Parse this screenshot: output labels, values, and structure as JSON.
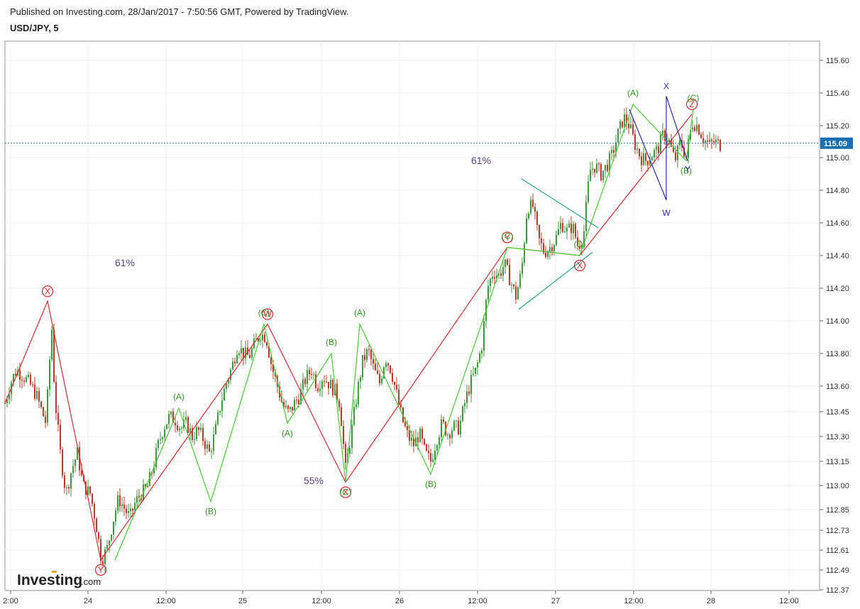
{
  "header": {
    "published": "Published on Investing.com, 28/Jan/2017 - 7:50:56 GMT, Powered by TradingView.",
    "symbol": "USD/JPY, 5"
  },
  "logo": {
    "main": "Investing",
    "sub": ".com"
  },
  "chart_data": {
    "type": "candlestick",
    "price_axis": {
      "ticks": [
        "115.60",
        "115.40",
        "115.20",
        "115.00",
        "114.80",
        "114.60",
        "114.40",
        "114.20",
        "114.00",
        "113.80",
        "113.60",
        "113.45",
        "113.30",
        "113.15",
        "113.00",
        "112.85",
        "112.73",
        "112.61",
        "112.49",
        "112.37"
      ],
      "range": [
        112.37,
        115.6
      ]
    },
    "time_axis": {
      "ticks": [
        "2:00",
        "24",
        "12:00",
        "25",
        "12:00",
        "26",
        "12:00",
        "27",
        "12:00",
        "28",
        "12:00"
      ]
    },
    "last_price": {
      "value": 115.09,
      "label": "115.09",
      "color": "#1a6fb0"
    },
    "candle_colors": {
      "up": "#3f9a3f",
      "down": "#c0392b"
    },
    "candles_close_path": [
      [
        0,
        113.5
      ],
      [
        8,
        113.62
      ],
      [
        16,
        113.7
      ],
      [
        26,
        113.66
      ],
      [
        34,
        113.62
      ],
      [
        44,
        113.55
      ],
      [
        52,
        113.45
      ],
      [
        58,
        113.38
      ],
      [
        62,
        113.7
      ],
      [
        66,
        113.95
      ],
      [
        70,
        113.55
      ],
      [
        78,
        113.2
      ],
      [
        86,
        112.95
      ],
      [
        94,
        113.1
      ],
      [
        102,
        113.2
      ],
      [
        110,
        113.0
      ],
      [
        120,
        112.95
      ],
      [
        128,
        112.78
      ],
      [
        136,
        112.55
      ],
      [
        144,
        112.62
      ],
      [
        152,
        112.78
      ],
      [
        160,
        112.92
      ],
      [
        168,
        112.86
      ],
      [
        176,
        112.8
      ],
      [
        184,
        112.9
      ],
      [
        192,
        112.95
      ],
      [
        200,
        112.98
      ],
      [
        208,
        113.1
      ],
      [
        216,
        113.25
      ],
      [
        224,
        113.36
      ],
      [
        232,
        113.42
      ],
      [
        240,
        113.4
      ],
      [
        248,
        113.35
      ],
      [
        256,
        113.38
      ],
      [
        264,
        113.3
      ],
      [
        272,
        113.34
      ],
      [
        280,
        113.28
      ],
      [
        288,
        113.2
      ],
      [
        296,
        113.32
      ],
      [
        304,
        113.5
      ],
      [
        312,
        113.62
      ],
      [
        320,
        113.72
      ],
      [
        328,
        113.85
      ],
      [
        336,
        113.8
      ],
      [
        344,
        113.78
      ],
      [
        352,
        113.86
      ],
      [
        360,
        113.92
      ],
      [
        368,
        113.9
      ],
      [
        376,
        113.72
      ],
      [
        384,
        113.6
      ],
      [
        392,
        113.48
      ],
      [
        400,
        113.44
      ],
      [
        408,
        113.5
      ],
      [
        416,
        113.55
      ],
      [
        424,
        113.65
      ],
      [
        432,
        113.7
      ],
      [
        440,
        113.6
      ],
      [
        448,
        113.66
      ],
      [
        456,
        113.62
      ],
      [
        464,
        113.58
      ],
      [
        472,
        113.5
      ],
      [
        480,
        113.1
      ],
      [
        488,
        113.32
      ],
      [
        496,
        113.55
      ],
      [
        504,
        113.75
      ],
      [
        512,
        113.82
      ],
      [
        520,
        113.7
      ],
      [
        528,
        113.62
      ],
      [
        536,
        113.78
      ],
      [
        544,
        113.7
      ],
      [
        552,
        113.55
      ],
      [
        560,
        113.4
      ],
      [
        568,
        113.3
      ],
      [
        576,
        113.25
      ],
      [
        584,
        113.32
      ],
      [
        592,
        113.2
      ],
      [
        600,
        113.15
      ],
      [
        608,
        113.28
      ],
      [
        616,
        113.38
      ],
      [
        624,
        113.32
      ],
      [
        632,
        113.36
      ],
      [
        640,
        113.35
      ],
      [
        648,
        113.5
      ],
      [
        656,
        113.62
      ],
      [
        664,
        113.7
      ],
      [
        672,
        113.85
      ],
      [
        680,
        114.2
      ],
      [
        688,
        114.3
      ],
      [
        696,
        114.28
      ],
      [
        704,
        114.35
      ],
      [
        712,
        114.25
      ],
      [
        720,
        114.15
      ],
      [
        728,
        114.3
      ],
      [
        736,
        114.7
      ],
      [
        744,
        114.7
      ],
      [
        752,
        114.5
      ],
      [
        760,
        114.42
      ],
      [
        768,
        114.45
      ],
      [
        776,
        114.5
      ],
      [
        784,
        114.6
      ],
      [
        792,
        114.55
      ],
      [
        800,
        114.58
      ],
      [
        808,
        114.45
      ],
      [
        816,
        114.55
      ],
      [
        824,
        114.92
      ],
      [
        832,
        114.95
      ],
      [
        840,
        114.9
      ],
      [
        848,
        114.95
      ],
      [
        856,
        115.02
      ],
      [
        864,
        115.15
      ],
      [
        872,
        115.25
      ],
      [
        880,
        115.2
      ],
      [
        888,
        115.08
      ],
      [
        896,
        115.0
      ],
      [
        904,
        114.98
      ],
      [
        912,
        115.02
      ],
      [
        920,
        115.05
      ],
      [
        928,
        115.15
      ],
      [
        936,
        115.1
      ],
      [
        944,
        114.98
      ],
      [
        952,
        115.1
      ],
      [
        960,
        115.0
      ],
      [
        968,
        115.22
      ],
      [
        976,
        115.2
      ],
      [
        984,
        115.12
      ],
      [
        992,
        115.08
      ],
      [
        1000,
        115.1
      ],
      [
        1008,
        115.08
      ]
    ],
    "waves": {
      "red": {
        "color": "#e0282e",
        "labels": [
          "X",
          "Y",
          "W",
          "X",
          "Y",
          "X",
          "Z"
        ],
        "points": [
          [
            0,
            113.5
          ],
          [
            60,
            114.12
          ],
          [
            135,
            112.55
          ],
          [
            370,
            113.98
          ],
          [
            480,
            113.02
          ],
          [
            708,
            114.45
          ],
          [
            810,
            114.4
          ],
          [
            968,
            115.27
          ]
        ]
      },
      "green": {
        "color": "#43d12f",
        "labels": [
          "(A)",
          "(B)",
          "(C)",
          "(A)",
          "(B)",
          "(C)",
          "(A)",
          "(B)",
          "(C)",
          "(D)",
          "(A)",
          "(B)",
          "(C)"
        ],
        "points": [
          [
            155,
            112.55
          ],
          [
            245,
            113.47
          ],
          [
            290,
            112.9
          ],
          [
            365,
            113.98
          ],
          [
            398,
            113.38
          ],
          [
            460,
            113.8
          ],
          [
            480,
            113.02
          ],
          [
            500,
            113.98
          ],
          [
            600,
            113.07
          ],
          [
            708,
            114.45
          ],
          [
            810,
            114.4
          ],
          [
            885,
            115.33
          ],
          [
            960,
            114.98
          ],
          [
            970,
            115.3
          ]
        ]
      },
      "blue": {
        "color": "#2a2ab5",
        "labels": [
          "X",
          "W",
          "Y"
        ],
        "points": [
          [
            880,
            115.3
          ],
          [
            932,
            114.74
          ],
          [
            932,
            115.38
          ],
          [
            962,
            114.98
          ]
        ]
      },
      "teal": {
        "color": "#2aa67e",
        "lines": [
          [
            [
              728,
              114.87
            ],
            [
              836,
              114.57
            ]
          ],
          [
            [
              724,
              114.07
            ],
            [
              828,
              114.42
            ]
          ]
        ]
      }
    },
    "annotations": {
      "percent_labels": [
        "61%",
        "55%",
        "61%"
      ],
      "red_circle_labels": [
        "X",
        "Y",
        "W",
        "X",
        "Y",
        "X",
        "Z"
      ],
      "green_labels_extra": [
        "(A)",
        "(B)",
        "(C)",
        "(A)",
        "(B)",
        "(C)",
        "(A)",
        "(B)",
        "(C)",
        "(D)",
        "(A)",
        "(B)",
        "(C)"
      ],
      "blue_labels": [
        "X",
        "W",
        "Y"
      ]
    }
  }
}
